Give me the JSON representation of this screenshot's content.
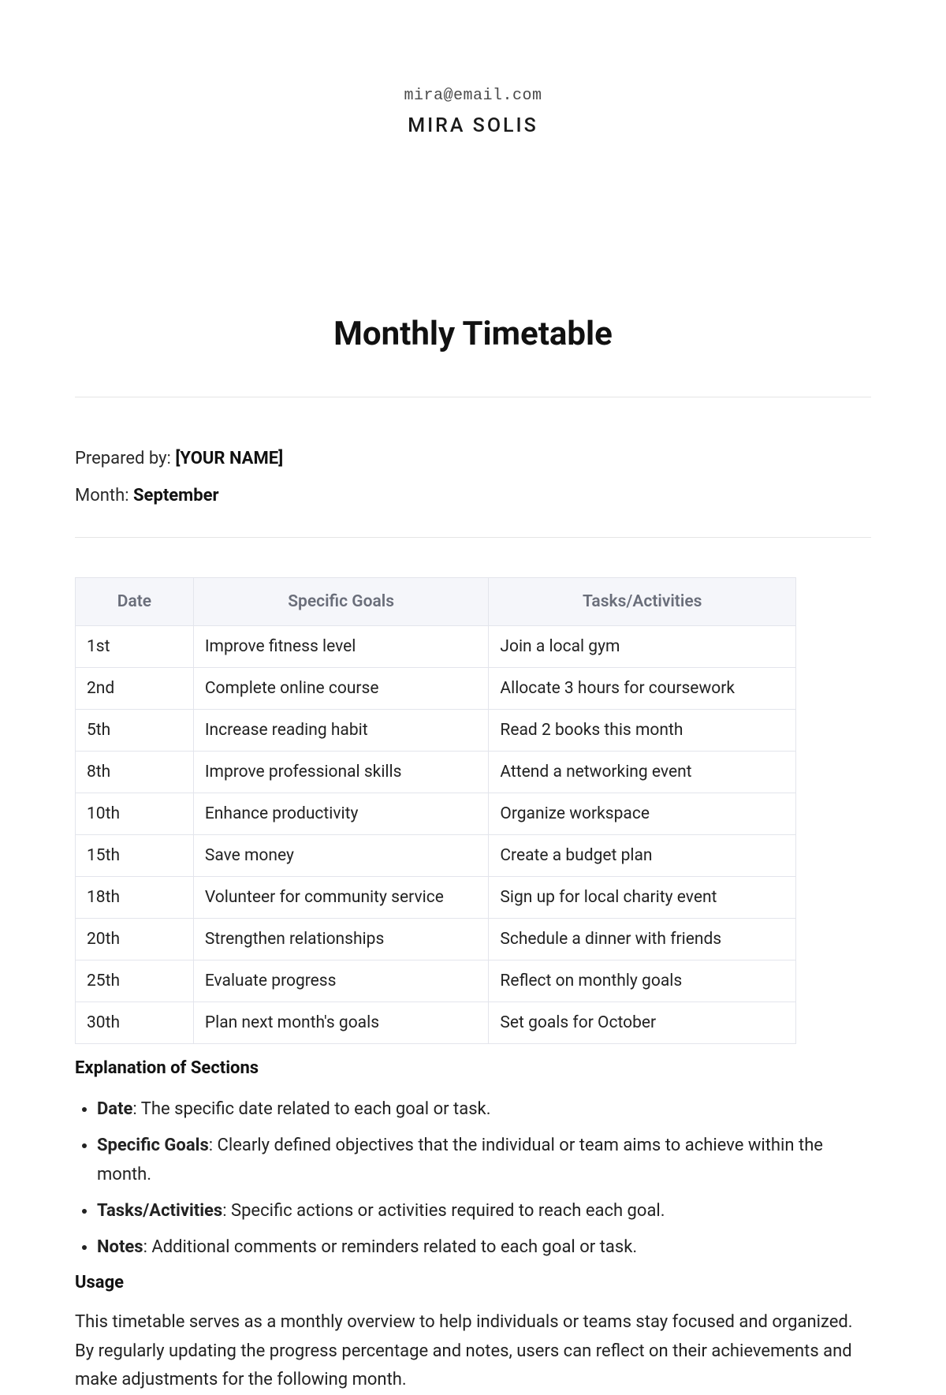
{
  "header": {
    "email": "mira@email.com",
    "name": "MIRA SOLIS"
  },
  "title": "Monthly Timetable",
  "meta": {
    "prepared_label": "Prepared by: ",
    "prepared_value": "[YOUR NAME]",
    "month_label": "Month: ",
    "month_value": "September"
  },
  "table": {
    "columns": [
      "Date",
      "Specific Goals",
      "Tasks/Activities"
    ],
    "rows": [
      [
        "1st",
        "Improve fitness level",
        "Join a local gym"
      ],
      [
        "2nd",
        "Complete online course",
        "Allocate 3 hours for coursework"
      ],
      [
        "5th",
        "Increase reading habit",
        "Read 2 books this month"
      ],
      [
        "8th",
        "Improve professional skills",
        "Attend a networking event"
      ],
      [
        "10th",
        "Enhance productivity",
        "Organize workspace"
      ],
      [
        "15th",
        "Save money",
        "Create a budget plan"
      ],
      [
        "18th",
        "Volunteer for community service",
        "Sign up for local charity event"
      ],
      [
        "20th",
        "Strengthen relationships",
        "Schedule a dinner with friends"
      ],
      [
        "25th",
        "Evaluate progress",
        "Reflect on monthly goals"
      ],
      [
        "30th",
        "Plan next month's goals",
        "Set goals for October"
      ]
    ]
  },
  "explanation": {
    "heading": "Explanation of Sections",
    "items": [
      {
        "term": "Date",
        "desc": ": The specific date related to each goal or task."
      },
      {
        "term": "Specific Goals",
        "desc": ": Clearly defined objectives that the individual or team aims to achieve within the month."
      },
      {
        "term": "Tasks/Activities",
        "desc": ": Specific actions or activities required to reach each goal."
      },
      {
        "term": "Notes",
        "desc": ": Additional comments or reminders related to each goal or task."
      }
    ]
  },
  "usage": {
    "heading": "Usage",
    "body": "This timetable serves as a monthly overview to help individuals or teams stay focused and organized. By regularly updating the progress percentage and notes, users can reflect on their achievements and make adjustments for the following month."
  }
}
